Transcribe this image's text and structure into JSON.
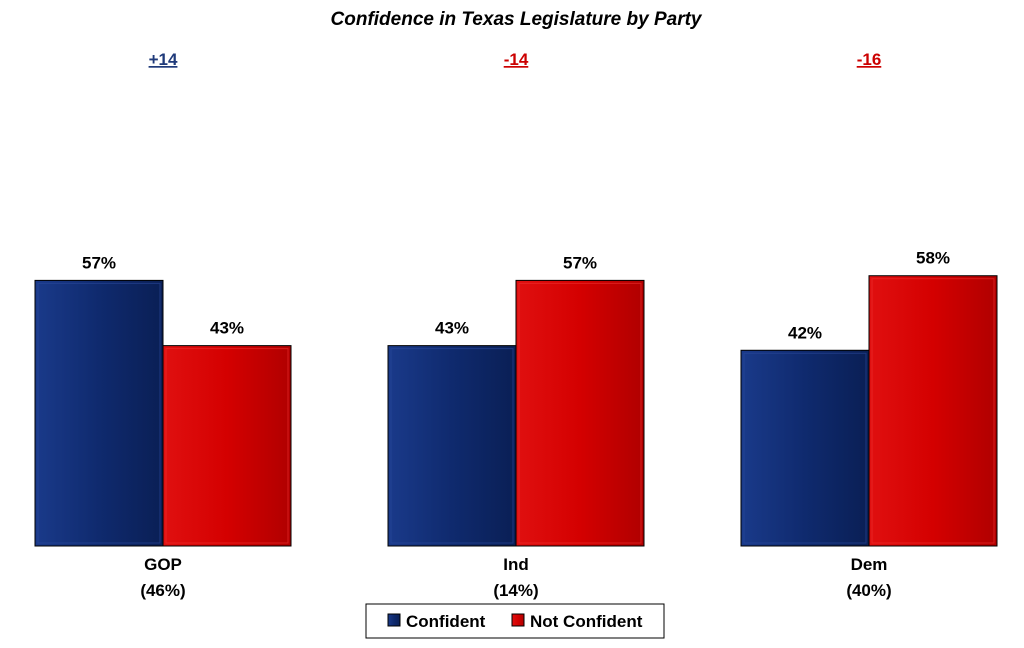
{
  "chart_data": {
    "type": "bar",
    "title": "Confidence in Texas Legislature by Party",
    "categories": [
      "GOP",
      "Ind",
      "Dem"
    ],
    "category_sublabels": [
      "(46%)",
      "(14%)",
      "(40%)"
    ],
    "net_labels": [
      "+14",
      "-14",
      "-16"
    ],
    "net_colors": [
      "#1f3a7a",
      "#cc0000",
      "#cc0000"
    ],
    "series": [
      {
        "name": "Confident",
        "values": [
          57,
          43,
          42
        ],
        "color": "#0f2a6e",
        "edge": "#2a4a9c"
      },
      {
        "name": "Not Confident",
        "values": [
          43,
          57,
          58
        ],
        "color": "#d40000",
        "edge": "#ee3030"
      }
    ],
    "value_suffix": "%",
    "ylim": [
      0,
      100
    ],
    "xlabel": "",
    "ylabel": "",
    "grid": false,
    "legend": "bottom-center"
  }
}
